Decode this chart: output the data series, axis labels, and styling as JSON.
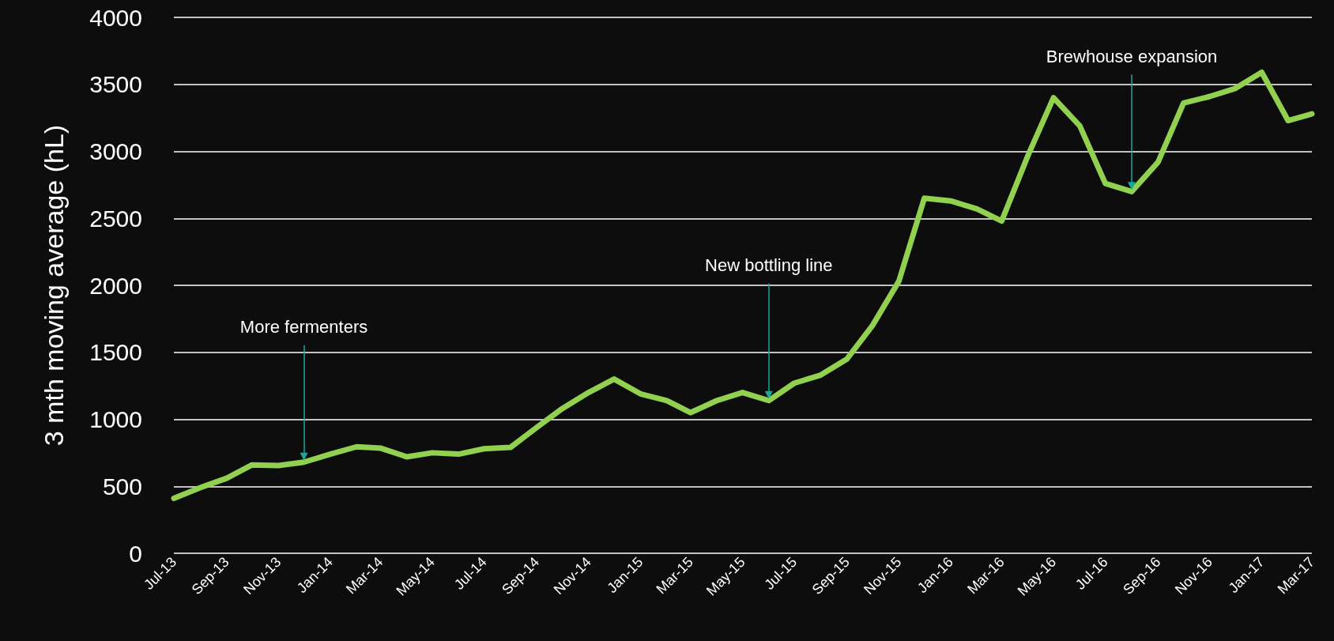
{
  "chart_data": {
    "type": "line",
    "ylabel": "3 mth moving average (hL)",
    "x": [
      "2013-07",
      "2013-08",
      "2013-09",
      "2013-10",
      "2013-11",
      "2013-12",
      "2014-01",
      "2014-02",
      "2014-03",
      "2014-04",
      "2014-05",
      "2014-06",
      "2014-07",
      "2014-08",
      "2014-09",
      "2014-10",
      "2014-11",
      "2014-12",
      "2015-01",
      "2015-02",
      "2015-03",
      "2015-04",
      "2015-05",
      "2015-06",
      "2015-07",
      "2015-08",
      "2015-09",
      "2015-10",
      "2015-11",
      "2015-12",
      "2016-01",
      "2016-02",
      "2016-03",
      "2016-04",
      "2016-05",
      "2016-06",
      "2016-07",
      "2016-08",
      "2016-09",
      "2016-10",
      "2016-11",
      "2016-12",
      "2017-01",
      "2017-02",
      "2017-03"
    ],
    "series": [
      {
        "color": "#92d050",
        "values": [
          410,
          490,
          560,
          660,
          655,
          680,
          740,
          795,
          785,
          720,
          750,
          740,
          780,
          790,
          940,
          1080,
          1200,
          1300,
          1190,
          1140,
          1050,
          1140,
          1200,
          1140,
          1270,
          1330,
          1450,
          1700,
          2030,
          2650,
          2630,
          2570,
          2480,
          2970,
          3400,
          3190,
          2760,
          2700,
          2920,
          3360,
          3410,
          3470,
          3590,
          3230,
          3280
        ]
      }
    ],
    "xlim": [
      "2013-07",
      "2017-03"
    ],
    "xticks": [
      {
        "value": "2013-07",
        "label": "Jul-13"
      },
      {
        "value": "2013-09",
        "label": "Sep-13"
      },
      {
        "value": "2013-11",
        "label": "Nov-13"
      },
      {
        "value": "2014-01",
        "label": "Jan-14"
      },
      {
        "value": "2014-03",
        "label": "Mar-14"
      },
      {
        "value": "2014-05",
        "label": "May-14"
      },
      {
        "value": "2014-07",
        "label": "Jul-14"
      },
      {
        "value": "2014-09",
        "label": "Sep-14"
      },
      {
        "value": "2014-11",
        "label": "Nov-14"
      },
      {
        "value": "2015-01",
        "label": "Jan-15"
      },
      {
        "value": "2015-03",
        "label": "Mar-15"
      },
      {
        "value": "2015-05",
        "label": "May-15"
      },
      {
        "value": "2015-07",
        "label": "Jul-15"
      },
      {
        "value": "2015-09",
        "label": "Sep-15"
      },
      {
        "value": "2015-11",
        "label": "Nov-15"
      },
      {
        "value": "2016-01",
        "label": "Jan-16"
      },
      {
        "value": "2016-03",
        "label": "Mar-16"
      },
      {
        "value": "2016-05",
        "label": "May-16"
      },
      {
        "value": "2016-07",
        "label": "Jul-16"
      },
      {
        "value": "2016-09",
        "label": "Sep-16"
      },
      {
        "value": "2016-11",
        "label": "Nov-16"
      },
      {
        "value": "2017-01",
        "label": "Jan-17"
      },
      {
        "value": "2017-03",
        "label": "Mar-17"
      }
    ],
    "ylim": [
      0,
      4000
    ],
    "yticks": [
      0,
      500,
      1000,
      1500,
      2000,
      2500,
      3000,
      3500,
      4000
    ],
    "grid": "y",
    "marker": "none",
    "line_style": "solid",
    "annotations": [
      {
        "text": "More fermenters",
        "x": "2013-12",
        "y": 680
      },
      {
        "text": "New bottling line",
        "x": "2015-06",
        "y": 1140
      },
      {
        "text": "Brewhouse expansion",
        "x": "2016-08",
        "y": 2700
      }
    ]
  }
}
